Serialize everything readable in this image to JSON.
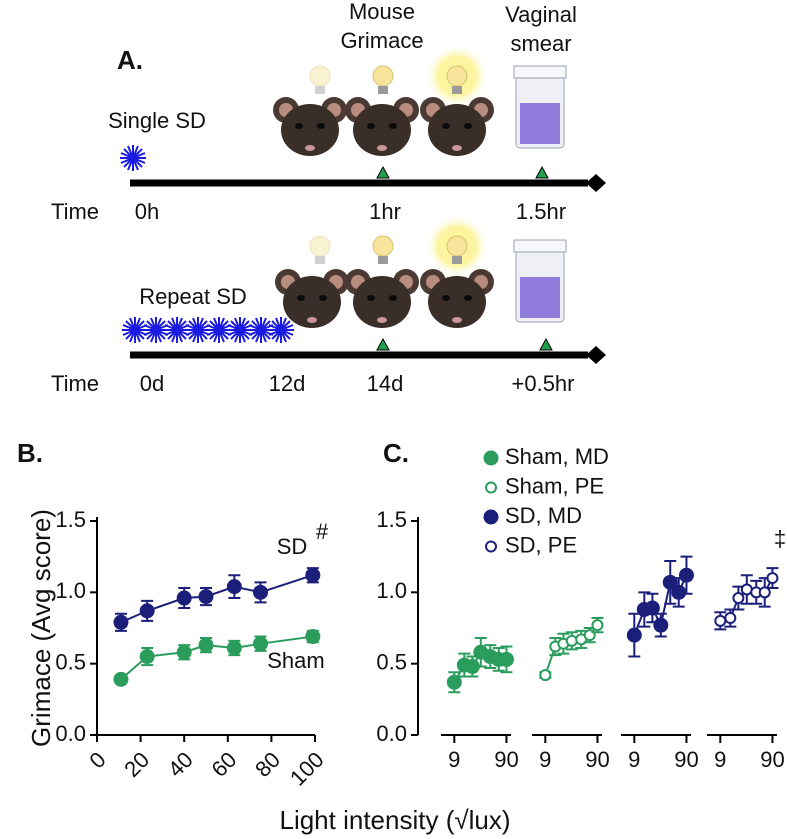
{
  "panel_a": {
    "label": "A.",
    "grimace": [
      "Mouse",
      "Grimace"
    ],
    "smear": [
      "Vaginal",
      "smear"
    ],
    "single": {
      "title": "Single SD",
      "time": "Time",
      "ticks": [
        "0h",
        "1hr",
        "1.5hr"
      ]
    },
    "repeat": {
      "title": "Repeat SD",
      "time": "Time",
      "ticks": [
        "0d",
        "12d",
        "14d",
        "+0.5hr"
      ]
    }
  },
  "x_label": "Light intensity (√lux)",
  "chart_data": [
    {
      "type": "line",
      "panel_label": "B.",
      "y_label": "Grimace (Avg score)",
      "xlim": [
        0,
        100
      ],
      "xticks": [
        0,
        20,
        40,
        60,
        80,
        100
      ],
      "ylim": [
        0,
        1.5
      ],
      "yticks": [
        {
          "value": 0,
          "label": "0.0"
        },
        {
          "value": 0.5,
          "label": "0.5"
        },
        {
          "value": 1,
          "label": "1.0"
        },
        1.5
      ],
      "series": [
        {
          "name": "SD",
          "color": "#1b1f7a",
          "open": false,
          "x": [
            11,
            23,
            40,
            50,
            63,
            75,
            99
          ],
          "values": [
            0.79,
            0.87,
            0.96,
            0.97,
            1.04,
            1.0,
            1.12
          ],
          "errors": [
            0.06,
            0.07,
            0.07,
            0.06,
            0.08,
            0.07,
            0.05
          ]
        },
        {
          "name": "Sham",
          "color": "#2a9d5c",
          "open": false,
          "x": [
            11,
            23,
            40,
            50,
            63,
            75,
            99
          ],
          "values": [
            0.39,
            0.55,
            0.58,
            0.63,
            0.61,
            0.64,
            0.69
          ],
          "errors": [
            0.02,
            0.06,
            0.05,
            0.05,
            0.05,
            0.05,
            0.04
          ]
        }
      ],
      "annotations": [
        "#"
      ]
    },
    {
      "type": "line",
      "panel_label": "C.",
      "xscale": "log",
      "xlim": [
        5,
        110
      ],
      "xticks": [
        9,
        90
      ],
      "ylim": [
        0,
        1.5
      ],
      "yticks": [
        {
          "value": 0,
          "label": "0.0"
        },
        {
          "value": 0.5,
          "label": "0.5"
        },
        {
          "value": 1,
          "label": "1.0"
        },
        1.5
      ],
      "legend": "top",
      "series": [
        {
          "name": "Sham, MD",
          "color": "#2a9d5c",
          "open": false,
          "x": [
            9,
            14,
            20,
            29,
            44,
            64,
            90
          ],
          "values": [
            0.37,
            0.49,
            0.48,
            0.58,
            0.55,
            0.53,
            0.53
          ],
          "errors": [
            0.07,
            0.08,
            0.07,
            0.1,
            0.08,
            0.08,
            0.09
          ]
        },
        {
          "name": "Sham, PE",
          "color": "#2a9d5c",
          "open": true,
          "x": [
            9,
            14,
            20,
            29,
            44,
            64,
            90
          ],
          "values": [
            0.42,
            0.62,
            0.64,
            0.66,
            0.67,
            0.7,
            0.77
          ],
          "errors": [
            0.02,
            0.06,
            0.07,
            0.06,
            0.06,
            0.05,
            0.05
          ]
        },
        {
          "name": "SD, MD",
          "color": "#1b1f7a",
          "open": false,
          "x": [
            9,
            14,
            20,
            29,
            44,
            64,
            90
          ],
          "values": [
            0.7,
            0.88,
            0.89,
            0.77,
            1.07,
            1.0,
            1.12
          ],
          "errors": [
            0.15,
            0.12,
            0.1,
            0.08,
            0.15,
            0.1,
            0.13
          ]
        },
        {
          "name": "SD, PE",
          "color": "#1b1f7a",
          "open": true,
          "x": [
            9,
            14,
            20,
            29,
            44,
            64,
            90
          ],
          "values": [
            0.8,
            0.82,
            0.96,
            1.02,
            1.0,
            1.0,
            1.1
          ],
          "errors": [
            0.06,
            0.06,
            0.08,
            0.1,
            0.08,
            0.1,
            0.07
          ]
        }
      ],
      "annotations": [
        "‡"
      ]
    }
  ]
}
